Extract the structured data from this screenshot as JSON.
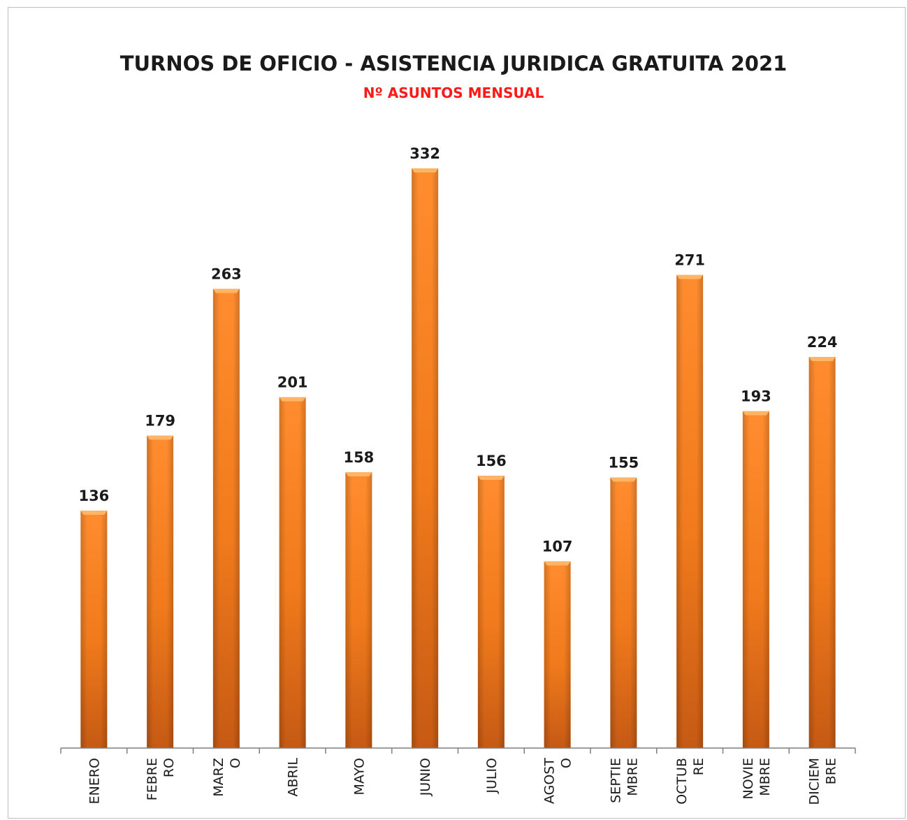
{
  "chart_data": {
    "type": "bar",
    "title": "TURNOS DE OFICIO  - ASISTENCIA JURIDICA GRATUITA 2021",
    "subtitle": "Nº ASUNTOS MENSUAL",
    "categories": [
      "ENERO",
      "FEBRERO",
      "MARZO",
      "ABRIL",
      "MAYO",
      "JUNIO",
      "JULIO",
      "AGOSTO",
      "SEPTIEMBRE",
      "OCTUBRE",
      "NOVIEMBRE",
      "DICIEMBRE"
    ],
    "category_label_lines": [
      [
        "ENERO"
      ],
      [
        "FEBRE",
        "RO"
      ],
      [
        "MARZ",
        "O"
      ],
      [
        "ABRIL"
      ],
      [
        "MAYO"
      ],
      [
        "JUNIO"
      ],
      [
        "JULIO"
      ],
      [
        "AGOST",
        "O"
      ],
      [
        "SEPTIE",
        "MBRE"
      ],
      [
        "OCTUB",
        "RE"
      ],
      [
        "NOVIE",
        "MBRE"
      ],
      [
        "DICIEM",
        "BRE"
      ]
    ],
    "values": [
      136,
      179,
      263,
      201,
      158,
      332,
      156,
      107,
      155,
      271,
      193,
      224
    ],
    "ylim": [
      0,
      350
    ],
    "grid": false,
    "legend": "none",
    "colors": {
      "bar_light": "#ff8a2a",
      "bar_dark": "#c85a12",
      "bar_top": "#ffb060",
      "title": "#1a1a1a",
      "subtitle": "#ff1a1a",
      "axis": "#7f7f7f"
    }
  }
}
